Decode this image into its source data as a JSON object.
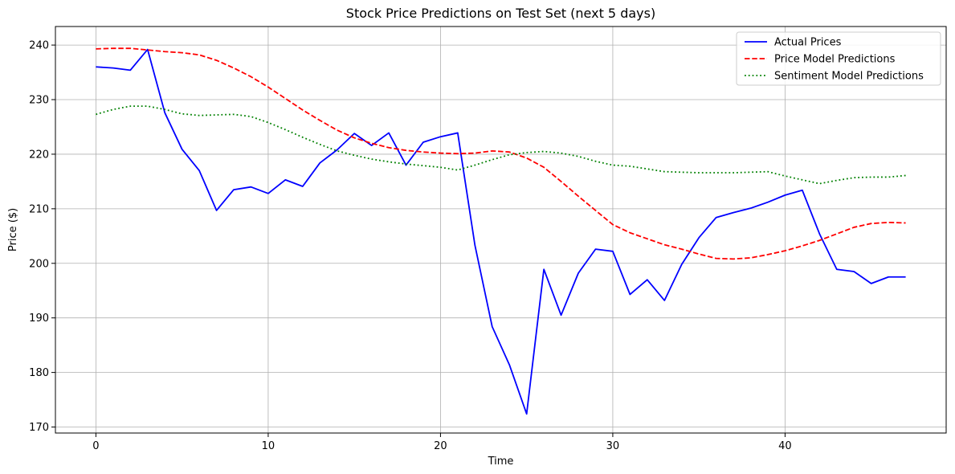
{
  "chart_data": {
    "type": "line",
    "title": "Stock Price Predictions on Test Set (next 5 days)",
    "xlabel": "Time",
    "ylabel": "Price ($)",
    "xlim": [
      -2.35,
      49.35
    ],
    "ylim": [
      168.9,
      243.4
    ],
    "xticks": [
      0,
      10,
      20,
      30,
      40
    ],
    "yticks": [
      170,
      180,
      190,
      200,
      210,
      220,
      230,
      240
    ],
    "grid": true,
    "legend_position": "top-right",
    "x": [
      0,
      1,
      2,
      3,
      4,
      5,
      6,
      7,
      8,
      9,
      10,
      11,
      12,
      13,
      14,
      15,
      16,
      17,
      18,
      19,
      20,
      21,
      22,
      23,
      24,
      25,
      26,
      27,
      28,
      29,
      30,
      31,
      32,
      33,
      34,
      35,
      36,
      37,
      38,
      39,
      40,
      41,
      42,
      43,
      44,
      45,
      46,
      47
    ],
    "series": [
      {
        "name": "Actual Prices",
        "color": "#0000ff",
        "style": "solid",
        "values": [
          236.0,
          235.8,
          235.4,
          239.2,
          227.6,
          220.9,
          217.0,
          209.7,
          213.5,
          214.0,
          212.8,
          215.3,
          214.1,
          218.4,
          220.8,
          223.8,
          221.6,
          223.9,
          218.0,
          222.2,
          223.2,
          223.9,
          203.3,
          188.4,
          181.4,
          172.4,
          198.9,
          190.5,
          198.2,
          202.6,
          202.2,
          194.3,
          197.0,
          193.2,
          199.8,
          204.7,
          208.4,
          209.3,
          210.1,
          211.2,
          212.5,
          213.4,
          205.4,
          198.9,
          198.5,
          196.3,
          197.5,
          197.5
        ]
      },
      {
        "name": "Price Model Predictions",
        "color": "#ff0000",
        "style": "dashed",
        "values": [
          239.3,
          239.4,
          239.4,
          239.1,
          238.8,
          238.6,
          238.2,
          237.2,
          235.8,
          234.2,
          232.3,
          230.2,
          228.1,
          226.2,
          224.4,
          223.0,
          222.0,
          221.2,
          220.7,
          220.4,
          220.2,
          220.1,
          220.2,
          220.6,
          220.4,
          219.3,
          217.6,
          215.0,
          212.3,
          209.7,
          207.1,
          205.6,
          204.5,
          203.4,
          202.6,
          201.7,
          200.9,
          200.8,
          201.0,
          201.6,
          202.3,
          203.2,
          204.2,
          205.4,
          206.6,
          207.3,
          207.5,
          207.4
        ]
      },
      {
        "name": "Sentiment Model Predictions",
        "color": "#008000",
        "style": "dotted",
        "values": [
          227.3,
          228.2,
          228.8,
          228.8,
          228.2,
          227.4,
          227.1,
          227.2,
          227.3,
          226.9,
          225.8,
          224.5,
          223.1,
          221.8,
          220.6,
          219.8,
          219.1,
          218.6,
          218.2,
          217.9,
          217.6,
          217.1,
          218.0,
          219.0,
          219.9,
          220.3,
          220.5,
          220.2,
          219.6,
          218.7,
          218.0,
          217.8,
          217.3,
          216.8,
          216.7,
          216.6,
          216.6,
          216.6,
          216.7,
          216.8,
          216.0,
          215.3,
          214.6,
          215.2,
          215.7,
          215.8,
          215.8,
          216.1
        ]
      }
    ]
  }
}
